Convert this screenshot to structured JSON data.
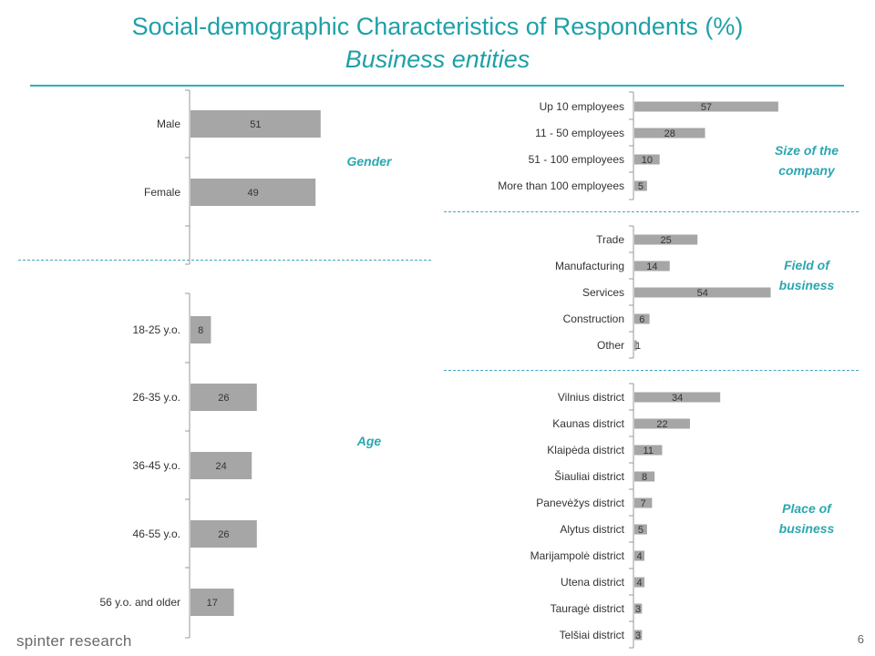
{
  "title": "Social-demographic Characteristics of Respondents (%)",
  "subtitle": "Business entities",
  "footer": {
    "brand": "spinter research",
    "page": "6"
  },
  "colors": {
    "accent": "#2ba7b0",
    "bar": "#a6a6a6",
    "title": "#1fa0a8"
  },
  "sections": {
    "gender": "Gender",
    "age": "Age",
    "size": [
      "Size of the",
      "company"
    ],
    "field": [
      "Field of",
      "business"
    ],
    "place": [
      "Place of",
      "business"
    ]
  },
  "chart_data": [
    {
      "type": "bar",
      "orientation": "horizontal",
      "name": "Gender",
      "categories": [
        "Male",
        "Female"
      ],
      "values": [
        51,
        49
      ],
      "axis": {
        "x": "visible",
        "y": "visible"
      }
    },
    {
      "type": "bar",
      "orientation": "horizontal",
      "name": "Age",
      "categories": [
        "18-25 y.o.",
        "26-35 y.o.",
        "36-45 y.o.",
        "46-55 y.o.",
        "56 y.o. and older"
      ],
      "values": [
        8,
        26,
        24,
        26,
        17
      ]
    },
    {
      "type": "bar",
      "orientation": "horizontal",
      "name": "Size of the company",
      "categories": [
        "Up 10 employees",
        "11 - 50 employees",
        "51 - 100 employees",
        "More than 100 employees"
      ],
      "values": [
        57,
        28,
        10,
        5
      ]
    },
    {
      "type": "bar",
      "orientation": "horizontal",
      "name": "Field of business",
      "categories": [
        "Trade",
        "Manufacturing",
        "Services",
        "Construction",
        "Other"
      ],
      "values": [
        25,
        14,
        54,
        6,
        1
      ]
    },
    {
      "type": "bar",
      "orientation": "horizontal",
      "name": "Place of business",
      "categories": [
        "Vilnius district",
        "Kaunas district",
        "Klaipėda district",
        "Šiauliai district",
        "Panevėžys district",
        "Alytus district",
        "Marijampolė district",
        "Utena district",
        "Tauragė district",
        "Telšiai district"
      ],
      "values": [
        34,
        22,
        11,
        8,
        7,
        5,
        4,
        4,
        3,
        3
      ]
    }
  ]
}
